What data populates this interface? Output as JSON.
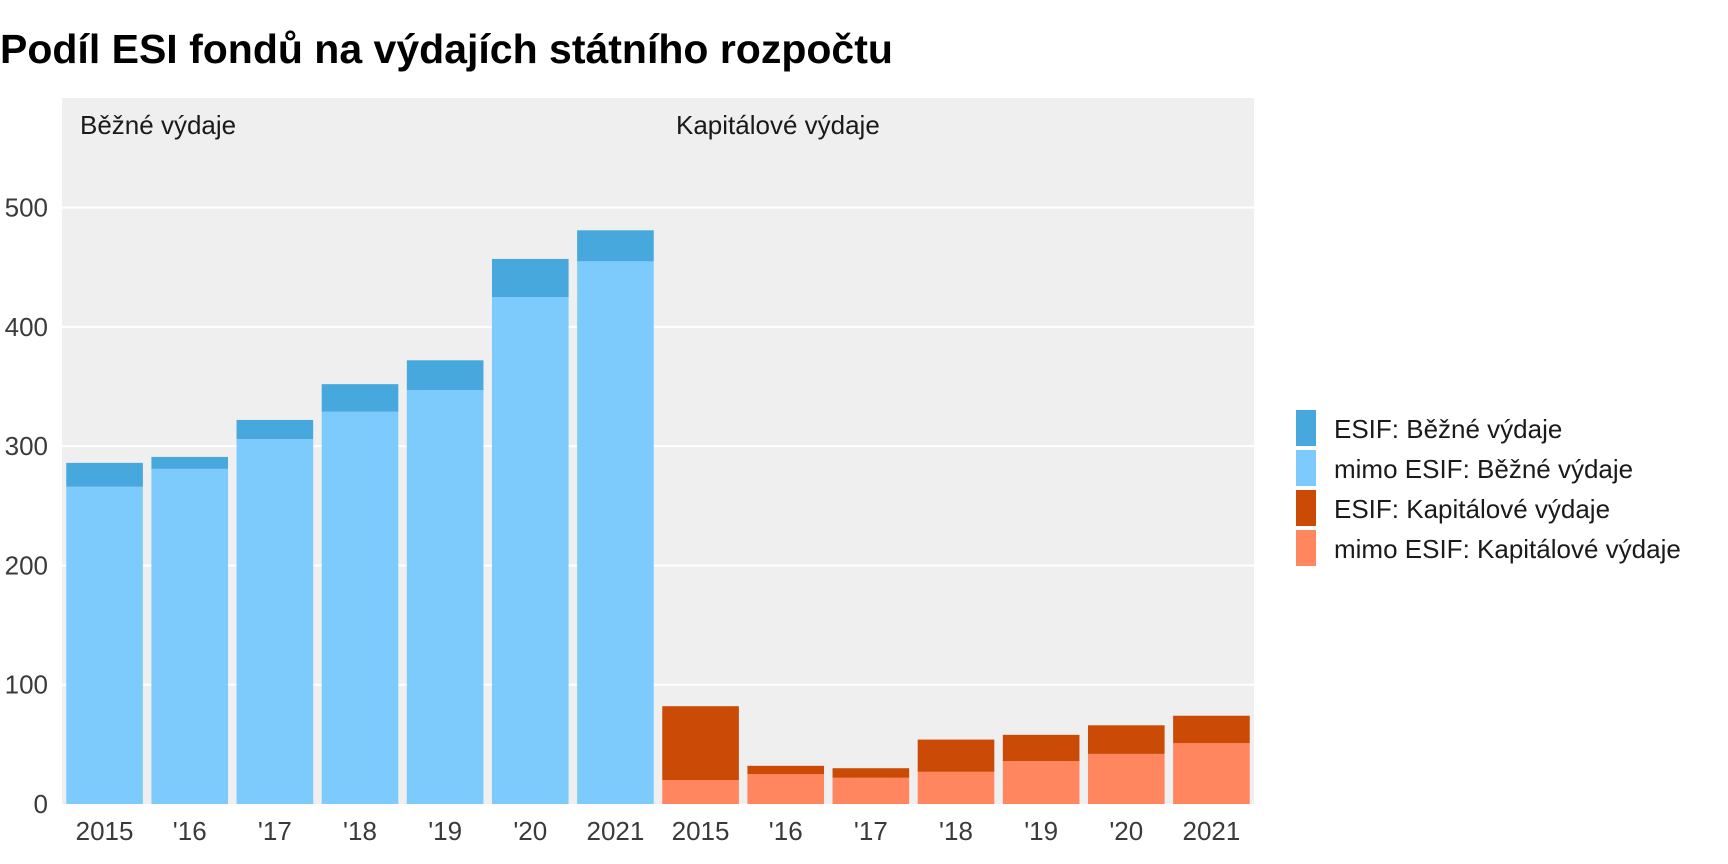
{
  "chart_data": {
    "type": "bar",
    "stacked": true,
    "title": "Podíl ESI fondů na výdajích státního rozpočtu",
    "xlabel": "",
    "ylabel": "",
    "ylim": [
      0,
      550
    ],
    "yticks": [
      0,
      100,
      200,
      300,
      400,
      500
    ],
    "grid": true,
    "legend_position": "right",
    "categories": [
      "2015",
      "'16",
      "'17",
      "'18",
      "'19",
      "'20",
      "2021"
    ],
    "panels": [
      {
        "label": "Běžné výdaje",
        "series": [
          {
            "name": "mimo ESIF: Běžné výdaje",
            "color": "#7ccbfc",
            "values": [
              266,
              281,
              306,
              329,
              347,
              425,
              455
            ]
          },
          {
            "name": "ESIF: Běžné výdaje",
            "color": "#46a8dc",
            "values": [
              20,
              10,
              16,
              23,
              25,
              32,
              26
            ]
          }
        ]
      },
      {
        "label": "Kapitálové výdaje",
        "series": [
          {
            "name": "mimo ESIF: Kapitálové výdaje",
            "color": "#ff865e",
            "values": [
              20,
              25,
              22,
              27,
              36,
              42,
              51
            ]
          },
          {
            "name": "ESIF: Kapitálové výdaje",
            "color": "#cb4a06",
            "values": [
              62,
              7,
              8,
              27,
              22,
              24,
              23
            ]
          }
        ]
      }
    ],
    "legend": [
      {
        "name": "ESIF: Běžné výdaje",
        "color": "#46a8dc"
      },
      {
        "name": "mimo ESIF: Běžné výdaje",
        "color": "#7ccbfc"
      },
      {
        "name": "ESIF: Kapitálové výdaje",
        "color": "#cb4a06"
      },
      {
        "name": "mimo ESIF: Kapitálové výdaje",
        "color": "#ff865e"
      }
    ]
  }
}
